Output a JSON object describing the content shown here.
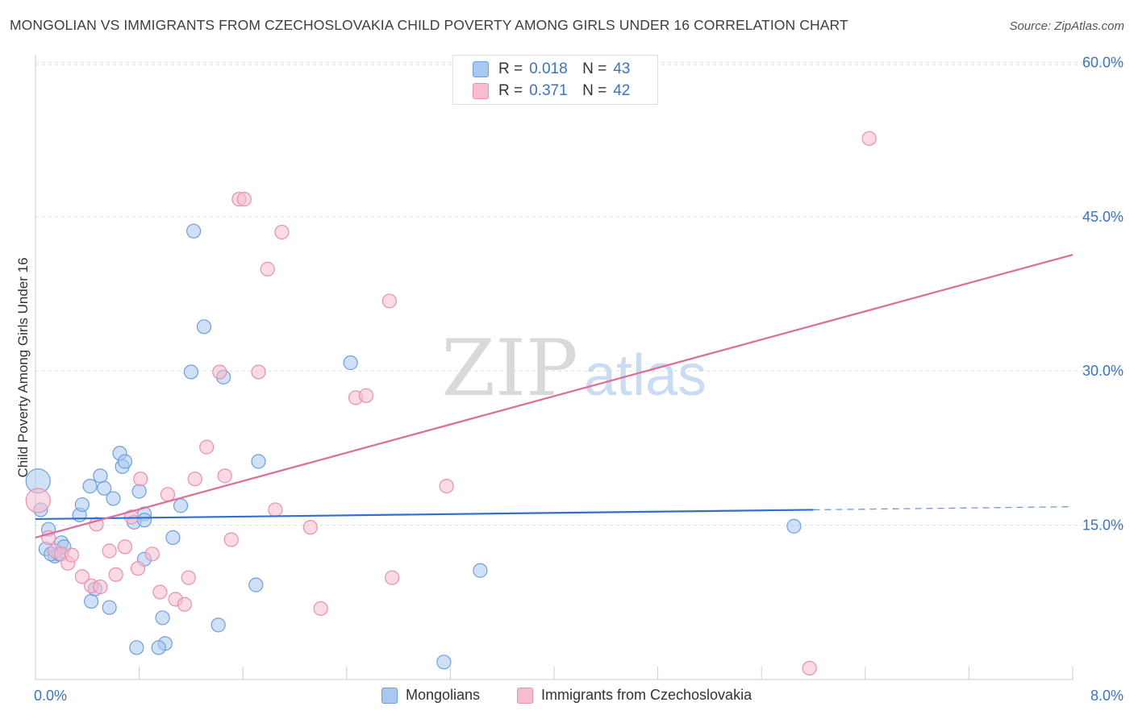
{
  "header": {
    "title": "MONGOLIAN VS IMMIGRANTS FROM CZECHOSLOVAKIA CHILD POVERTY AMONG GIRLS UNDER 16 CORRELATION CHART",
    "source": "Source: ZipAtlas.com"
  },
  "watermark": {
    "zip": "ZIP",
    "atlas": "atlas"
  },
  "colors": {
    "blue_fill": "#a9c8f0",
    "blue_stroke": "#6c9fe0",
    "blue_line": "#2f6fd0",
    "pink_fill": "#f7bcd0",
    "pink_stroke": "#ea8fae",
    "pink_line": "#e06b96",
    "tick_label": "#3a73c8",
    "grid": "#dedede"
  },
  "legend_top": [
    {
      "r_key": "R =",
      "r_value": "0.018",
      "n_key": "N =",
      "n_value": "43"
    },
    {
      "r_key": "R =",
      "r_value": "0.371",
      "n_key": "N =",
      "n_value": "42"
    }
  ],
  "legend_bottom": [
    {
      "label": "Mongolians"
    },
    {
      "label": "Immigrants from Czechoslovakia"
    }
  ],
  "chart_data": {
    "type": "scatter",
    "title": "MONGOLIAN VS IMMIGRANTS FROM CZECHOSLOVAKIA CHILD POVERTY AMONG GIRLS UNDER 16 CORRELATION CHART",
    "xlabel": "",
    "ylabel": "Child Poverty Among Girls Under 16",
    "xlim": [
      0,
      8
    ],
    "ylim": [
      0,
      60
    ],
    "x_tick_labels": [
      {
        "value": 0,
        "label": "0.0%"
      },
      {
        "value": 8,
        "label": "8.0%"
      }
    ],
    "y_tick_labels": [
      {
        "value": 15,
        "label": "15.0%"
      },
      {
        "value": 30,
        "label": "30.0%"
      },
      {
        "value": 45,
        "label": "45.0%"
      },
      {
        "value": 60,
        "label": "60.0%"
      }
    ],
    "grid": true,
    "legend_position": "top-center",
    "series": [
      {
        "name": "Mongolians",
        "R": 0.018,
        "N": 43,
        "trend": {
          "x0": 0.0,
          "y0": 15.6,
          "x1": 6.0,
          "y1": 16.5,
          "dashed_to_x": 8.0,
          "dashed_to_y": 16.8
        },
        "points": [
          [
            0.02,
            19.3
          ],
          [
            0.04,
            16.5
          ],
          [
            0.1,
            14.6
          ],
          [
            0.08,
            12.7
          ],
          [
            0.15,
            12.0
          ],
          [
            0.18,
            12.2
          ],
          [
            0.2,
            13.3
          ],
          [
            0.22,
            12.9
          ],
          [
            0.12,
            12.2
          ],
          [
            0.34,
            16.0
          ],
          [
            0.36,
            17.0
          ],
          [
            0.42,
            18.8
          ],
          [
            0.5,
            19.8
          ],
          [
            0.53,
            18.6
          ],
          [
            0.6,
            17.6
          ],
          [
            0.65,
            22.0
          ],
          [
            0.67,
            20.7
          ],
          [
            0.69,
            21.2
          ],
          [
            0.76,
            15.3
          ],
          [
            0.8,
            18.3
          ],
          [
            0.84,
            16.1
          ],
          [
            0.84,
            15.5
          ],
          [
            0.84,
            11.7
          ],
          [
            0.43,
            7.6
          ],
          [
            0.46,
            8.8
          ],
          [
            0.57,
            7.0
          ],
          [
            0.78,
            3.1
          ],
          [
            0.98,
            6.0
          ],
          [
            1.0,
            3.5
          ],
          [
            0.95,
            3.1
          ],
          [
            1.06,
            13.8
          ],
          [
            1.12,
            16.9
          ],
          [
            1.2,
            29.9
          ],
          [
            1.22,
            43.6
          ],
          [
            1.3,
            34.3
          ],
          [
            1.45,
            29.4
          ],
          [
            1.41,
            5.3
          ],
          [
            1.7,
            9.2
          ],
          [
            1.72,
            21.2
          ],
          [
            2.43,
            30.8
          ],
          [
            3.15,
            1.7
          ],
          [
            3.43,
            10.6
          ],
          [
            5.85,
            14.9
          ]
        ]
      },
      {
        "name": "Immigrants from Czechoslovakia",
        "R": 0.371,
        "N": 42,
        "trend": {
          "x0": 0.0,
          "y0": 13.8,
          "x1": 8.0,
          "y1": 41.3
        },
        "points": [
          [
            0.02,
            17.4
          ],
          [
            0.1,
            13.8
          ],
          [
            0.15,
            12.5
          ],
          [
            0.2,
            12.2
          ],
          [
            0.25,
            11.3
          ],
          [
            0.28,
            12.1
          ],
          [
            0.36,
            10.0
          ],
          [
            0.43,
            9.1
          ],
          [
            0.5,
            9.0
          ],
          [
            0.47,
            15.1
          ],
          [
            0.57,
            12.5
          ],
          [
            0.62,
            10.2
          ],
          [
            0.69,
            12.9
          ],
          [
            0.74,
            15.8
          ],
          [
            0.79,
            10.8
          ],
          [
            0.81,
            19.5
          ],
          [
            0.9,
            12.2
          ],
          [
            0.96,
            8.5
          ],
          [
            1.02,
            18.0
          ],
          [
            1.08,
            7.8
          ],
          [
            1.15,
            7.3
          ],
          [
            1.18,
            9.9
          ],
          [
            1.23,
            19.5
          ],
          [
            1.32,
            22.6
          ],
          [
            1.42,
            29.9
          ],
          [
            1.46,
            19.8
          ],
          [
            1.51,
            13.6
          ],
          [
            1.57,
            46.7
          ],
          [
            1.61,
            46.7
          ],
          [
            1.72,
            29.9
          ],
          [
            1.79,
            39.9
          ],
          [
            1.85,
            16.5
          ],
          [
            1.9,
            43.5
          ],
          [
            2.12,
            14.8
          ],
          [
            2.2,
            6.9
          ],
          [
            2.47,
            27.4
          ],
          [
            2.55,
            27.6
          ],
          [
            2.73,
            36.8
          ],
          [
            2.75,
            9.9
          ],
          [
            3.17,
            18.8
          ],
          [
            5.97,
            1.1
          ],
          [
            6.43,
            52.6
          ]
        ]
      }
    ]
  }
}
